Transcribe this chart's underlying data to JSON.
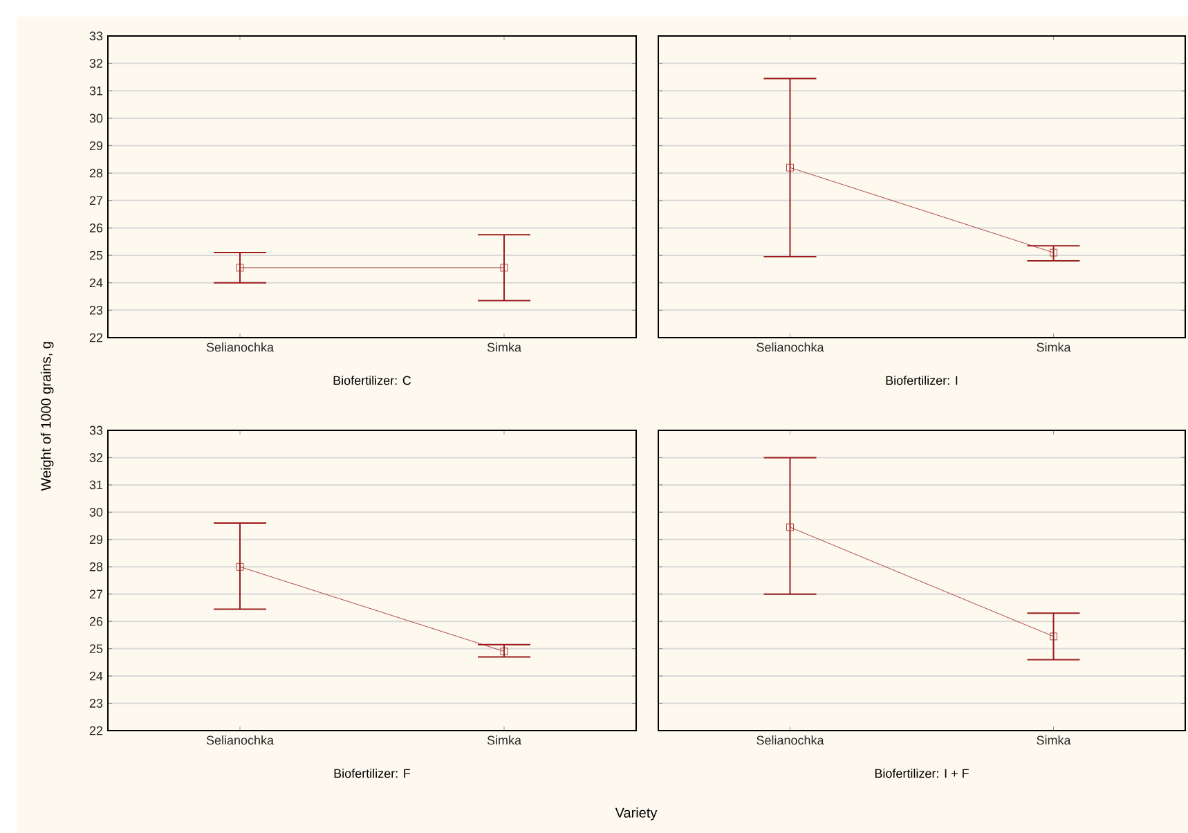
{
  "chart_data": [
    {
      "type": "line",
      "title": "Biofertilizer: C",
      "ylabel": "Weight of 1000 grains, g",
      "categories": [
        "Selianochka",
        "Simka"
      ],
      "series": [
        {
          "color": "#9b1c1c",
          "values": [
            24.55,
            24.55
          ],
          "errors": [
            [
              24.0,
              25.1
            ],
            [
              23.35,
              25.75
            ]
          ]
        }
      ],
      "ylim": [
        22,
        33
      ],
      "yticks": [
        22,
        23,
        24,
        25,
        26,
        27,
        28,
        29,
        30,
        31,
        32,
        33
      ],
      "grid": "y",
      "marker": "square",
      "line_style": "solid"
    },
    {
      "type": "line",
      "title": "Biofertilizer: I",
      "categories": [
        "Selianochka",
        "Simka"
      ],
      "series": [
        {
          "color": "#9b1c1c",
          "values": [
            28.2,
            25.1
          ],
          "errors": [
            [
              24.95,
              31.45
            ],
            [
              24.8,
              25.35
            ]
          ]
        }
      ],
      "ylim": [
        22,
        33
      ],
      "yticks": [
        22,
        23,
        24,
        25,
        26,
        27,
        28,
        29,
        30,
        31,
        32,
        33
      ],
      "grid": "y",
      "marker": "square",
      "line_style": "solid",
      "tick_labels": "x"
    },
    {
      "type": "line",
      "title": "Biofertilizer: F",
      "xlabel": "Variety",
      "categories": [
        "Selianochka",
        "Simka"
      ],
      "series": [
        {
          "color": "#9b1c1c",
          "values": [
            28.0,
            24.9
          ],
          "errors": [
            [
              26.45,
              29.6
            ],
            [
              24.7,
              25.15
            ]
          ]
        }
      ],
      "ylim": [
        22,
        33
      ],
      "yticks": [
        22,
        23,
        24,
        25,
        26,
        27,
        28,
        29,
        30,
        31,
        32,
        33
      ],
      "grid": "y",
      "marker": "square",
      "line_style": "solid"
    },
    {
      "type": "line",
      "title": "Biofertilizer: I + F",
      "categories": [
        "Selianochka",
        "Simka"
      ],
      "series": [
        {
          "color": "#9b1c1c",
          "values": [
            29.45,
            25.45
          ],
          "errors": [
            [
              27.0,
              32.0
            ],
            [
              24.6,
              26.3
            ]
          ]
        }
      ],
      "ylim": [
        22,
        33
      ],
      "yticks": [
        22,
        23,
        24,
        25,
        26,
        27,
        28,
        29,
        30,
        31,
        32,
        33
      ],
      "grid": "y",
      "marker": "square",
      "line_style": "solid",
      "tick_labels": "x"
    }
  ]
}
